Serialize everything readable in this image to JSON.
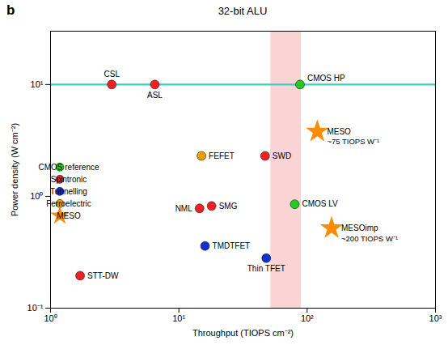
{
  "chart_data": {
    "type": "scatter",
    "title": "32-bit ALU",
    "panel_label": "b",
    "xlabel": "Throughput (TIOPS cm⁻²)",
    "ylabel": "Power density (W cm⁻²)",
    "log": true,
    "xlim": [
      1,
      1000
    ],
    "ylim": [
      0.1,
      30
    ],
    "xticks": [
      {
        "value": 1,
        "label": "10⁰"
      },
      {
        "value": 10,
        "label": "10¹"
      },
      {
        "value": 100,
        "label": "10²"
      },
      {
        "value": 1000,
        "label": "10³"
      }
    ],
    "yticks": [
      {
        "value": 0.1,
        "label": "10⁻¹"
      },
      {
        "value": 1,
        "label": "10⁰"
      },
      {
        "value": 10,
        "label": "10¹"
      }
    ],
    "grid": false,
    "legend": "left",
    "shaded_band": {
      "x": [
        52,
        90
      ],
      "color": "#f7b8b8"
    },
    "power_limit": {
      "y": 10,
      "color": "#3ecfbf"
    },
    "series": [
      {
        "name": "CMOS reference",
        "color": "#22cc22",
        "marker": "circle",
        "x": [
          88.0,
          80.0
        ],
        "values": [
          10.0,
          0.85
        ],
        "point_labels": [
          "CMOS HP",
          "CMOS LV"
        ]
      },
      {
        "name": "Spintronic",
        "color": "#ee2222",
        "marker": "circle",
        "x": [
          3.0,
          6.5,
          1.7,
          14.5,
          18.0,
          47.0
        ],
        "values": [
          10.0,
          10.0,
          0.195,
          0.78,
          0.82,
          2.3
        ],
        "point_labels": [
          "CSL",
          "ASL",
          "STT-DW",
          "NML",
          "SMG",
          "SWD"
        ]
      },
      {
        "name": "Tunnelling",
        "color": "#1133cc",
        "marker": "circle",
        "x": [
          16.0,
          48.0
        ],
        "values": [
          0.36,
          0.28
        ],
        "point_labels": [
          "TMDTFET",
          "Thin TFET"
        ]
      },
      {
        "name": "Ferroelectric",
        "color": "#e8a000",
        "marker": "circle",
        "x": [
          15.0
        ],
        "values": [
          2.3
        ],
        "point_labels": [
          "FEFET"
        ]
      },
      {
        "name": "MESO",
        "color": "#ff8c00",
        "marker": "star",
        "x": [
          120.0,
          155.0
        ],
        "values": [
          3.8,
          0.52
        ],
        "point_labels": [
          "MESO",
          "MESOimp"
        ],
        "notes": [
          "~75 TIOPS W⁻¹",
          "~200 TIOPS W⁻¹"
        ]
      }
    ]
  }
}
